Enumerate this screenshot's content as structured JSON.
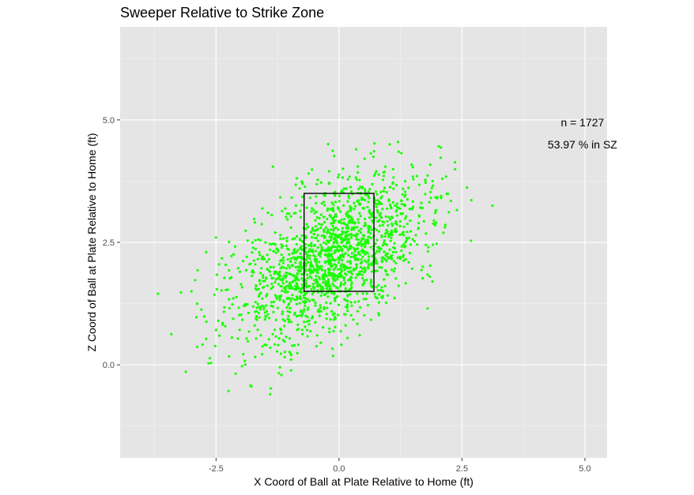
{
  "chart_data": {
    "type": "scatter",
    "title": "Sweeper Relative to Strike Zone",
    "xlabel": "X Coord of Ball at Plate Relative to Home (ft)",
    "ylabel": "Z Coord of Ball at Plate Relative to Home (ft)",
    "xlim": [
      -4.45,
      5.45
    ],
    "ylim": [
      -1.9,
      6.9
    ],
    "x_ticks": [
      -2.5,
      0.0,
      2.5,
      5.0
    ],
    "x_tick_labels": [
      "-2.5",
      "0.0",
      "2.5",
      "5.0"
    ],
    "y_ticks": [
      0.0,
      2.5,
      5.0
    ],
    "y_tick_labels": [
      "0.0",
      "2.5",
      "5.0"
    ],
    "grid": true,
    "point_color": "#19ff00",
    "n_points": 1727,
    "distribution": {
      "x_mean": -0.15,
      "x_sd": 0.95,
      "z_mean": 2.2,
      "z_sd": 0.85,
      "correlation": 0.5,
      "seed": 1727
    },
    "sample_points": [
      [
        -3.68,
        1.45
      ],
      [
        -3.0,
        1.5
      ],
      [
        -2.9,
        0.97
      ],
      [
        -2.7,
        0.53
      ],
      [
        3.12,
        3.25
      ],
      [
        2.6,
        3.62
      ],
      [
        2.1,
        3.8
      ],
      [
        1.9,
        1.7
      ],
      [
        1.8,
        1.15
      ],
      [
        1.2,
        4.55
      ],
      [
        1.03,
        4.5
      ],
      [
        0.35,
        4.4
      ],
      [
        -0.2,
        3.95
      ],
      [
        -1.4,
        -0.6
      ],
      [
        -1.8,
        -0.42
      ],
      [
        -2.1,
        -0.18
      ],
      [
        -1.2,
        -0.05
      ],
      [
        -0.8,
        3.6
      ],
      [
        -2.5,
        2.6
      ],
      [
        -2.7,
        2.3
      ]
    ],
    "strike_zone": {
      "x": [
        -0.71,
        0.71
      ],
      "z": [
        1.5,
        3.5
      ]
    },
    "annotations": [
      "n = 1727",
      "53.97 % in SZ"
    ],
    "annotation_positions": [
      [
        4.95,
        4.95
      ],
      [
        4.95,
        4.5
      ]
    ]
  }
}
